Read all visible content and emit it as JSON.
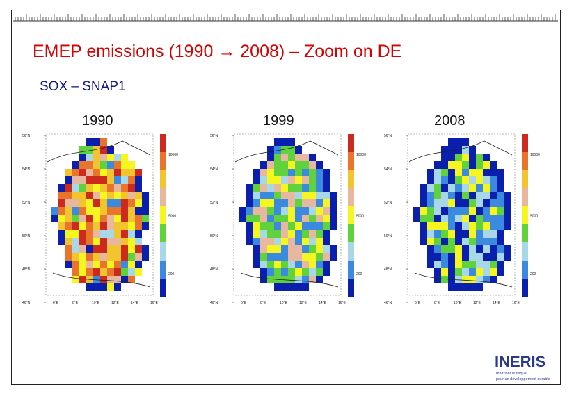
{
  "slide": {
    "title": "EMEP emissions (1990 → 2008) – Zoom on DE",
    "subtitle": "SOX – SNAP1"
  },
  "maps": [
    {
      "year": "1990",
      "lat_labels": [
        "56°N",
        "54°N",
        "52°N",
        "50°N",
        "48°N",
        "46°N"
      ],
      "lon_labels": [
        "6°E",
        "8°E",
        "10°E",
        "12°E",
        "14°E",
        "16°E"
      ],
      "legend_labels": [
        "10000",
        "5000",
        "200"
      ],
      "intensity": "high"
    },
    {
      "year": "1999",
      "lat_labels": [
        "56°N",
        "54°N",
        "52°N",
        "50°N",
        "48°N",
        "46°N"
      ],
      "lon_labels": [
        "6°E",
        "8°E",
        "10°E",
        "12°E",
        "14°E",
        "16°E"
      ],
      "legend_labels": [
        "10000",
        "5000",
        "200"
      ],
      "intensity": "medium"
    },
    {
      "year": "2008",
      "lat_labels": [
        "56°N",
        "54°N",
        "52°N",
        "50°N",
        "48°N",
        "46°N"
      ],
      "lon_labels": [
        "6°E",
        "8°E",
        "10°E",
        "12°E",
        "14°E",
        "16°E"
      ],
      "legend_labels": [
        "10000",
        "5000",
        "200"
      ],
      "intensity": "low"
    }
  ],
  "colorbar": [
    "#cc2a1e",
    "#e8752b",
    "#f2c530",
    "#e8b7a0",
    "#f5f520",
    "#5fd23c",
    "#a8d8e8",
    "#3c8ae0",
    "#0a1fae"
  ],
  "logo": {
    "name": "INERIS",
    "tagline_1": "maîtriser le risque",
    "tagline_2": "pour un développement durable"
  }
}
